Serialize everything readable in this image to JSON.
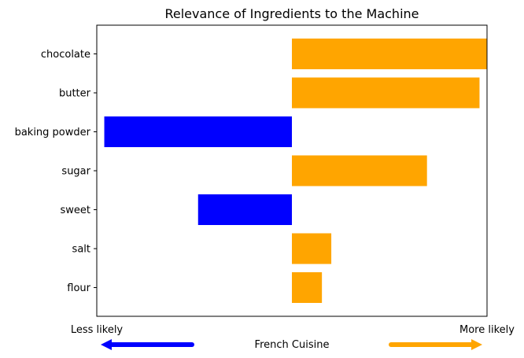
{
  "chart_data": {
    "type": "bar",
    "orientation": "horizontal",
    "title": "Relevance of Ingredients to the Machine",
    "xlabel": "French Cuisine",
    "left_end_label": "Less likely",
    "right_end_label": "More likely",
    "categories": [
      "chocolate",
      "butter",
      "baking powder",
      "sugar",
      "sweet",
      "salt",
      "flour"
    ],
    "values": [
      0.52,
      0.5,
      -0.5,
      0.36,
      -0.25,
      0.105,
      0.08
    ],
    "xlim": [
      -0.52,
      0.52
    ],
    "grid": false,
    "colors": {
      "positive": "#FFA500",
      "negative": "#0000FF"
    }
  }
}
